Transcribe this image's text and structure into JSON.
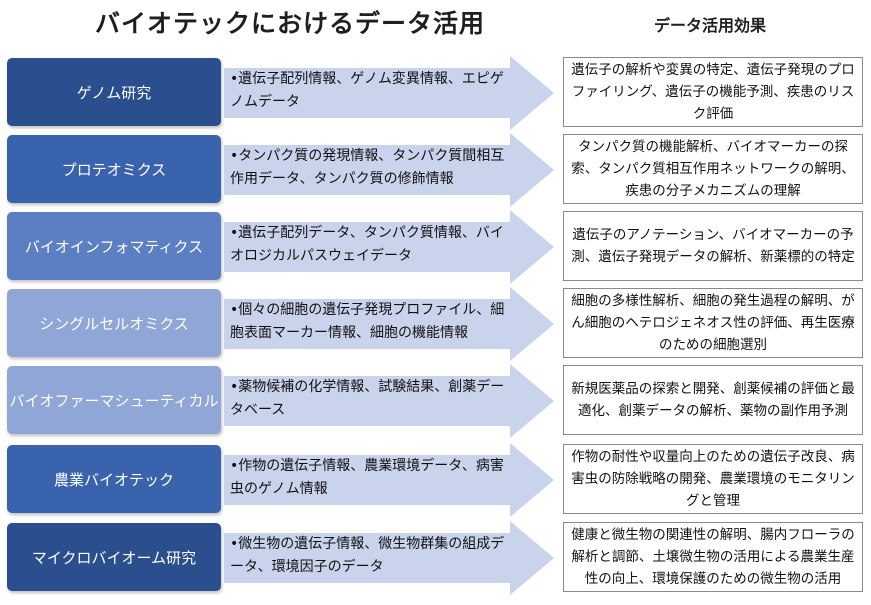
{
  "title": "バイオテックにおけるデータ活用",
  "effect_header": "データ活用効果",
  "bullet_char": "•",
  "rows": [
    {
      "category": "ゲノム研究",
      "data": "遺伝子配列情報、ゲノム変異情報、エピゲノムデータ",
      "effect": "遺伝子の解析や変異の特定、遺伝子発現のプロファイリング、遺伝子の機能予測、疾患のリスク評価",
      "color": "#2b4f8e"
    },
    {
      "category": "プロテオミクス",
      "data": "タンパク質の発現情報、タンパク質間相互作用データ、タンパク質の修飾情報",
      "effect": "タンパク質の機能解析、バイオマーカーの探索、タンパク質相互作用ネットワークの解明、疾患の分子メカニズムの理解",
      "color": "#3a63ad"
    },
    {
      "category": "バイオインフォマティクス",
      "data": "遺伝子配列データ、タンパク質情報、バイオロジカルパスウェイデータ",
      "effect": "遺伝子のアノテーション、バイオマーカーの予測、遺伝子発現データの解析、新薬標的の特定",
      "color": "#5b7fc2"
    },
    {
      "category": "シングルセルオミクス",
      "data": "個々の細胞の遺伝子発現プロファイル、細胞表面マーカー情報、細胞の機能情報",
      "effect": "細胞の多様性解析、細胞の発生過程の解明、がん細胞のヘテロジェネオス性の評価、再生医療のための細胞選別",
      "color": "#8fa6d6"
    },
    {
      "category": "バイオファーマシューティカル",
      "data": "薬物候補の化学情報、試験結果、創薬データベース",
      "effect": "新規医薬品の探索と開発、創薬候補の評価と最適化、創薬データの解析、薬物の副作用予測",
      "color": "#8fa6d6"
    },
    {
      "category": "農業バイオテック",
      "data": "作物の遺伝子情報、農業環境データ、病害虫のゲノム情報",
      "effect": "作物の耐性や収量向上のための遺伝子改良、病害虫の防除戦略の開発、農業環境のモニタリングと管理",
      "color": "#3a63ad"
    },
    {
      "category": "マイクロバイオーム研究",
      "data": "微生物の遺伝子情報、微生物群集の組成データ、環境因子のデータ",
      "effect": "健康と微生物の関連性の解明、腸内フローラの解析と調節、土壌微生物の活用による農業生産性の向上、環境保護のための微生物の活用",
      "color": "#2b4f8e"
    }
  ]
}
